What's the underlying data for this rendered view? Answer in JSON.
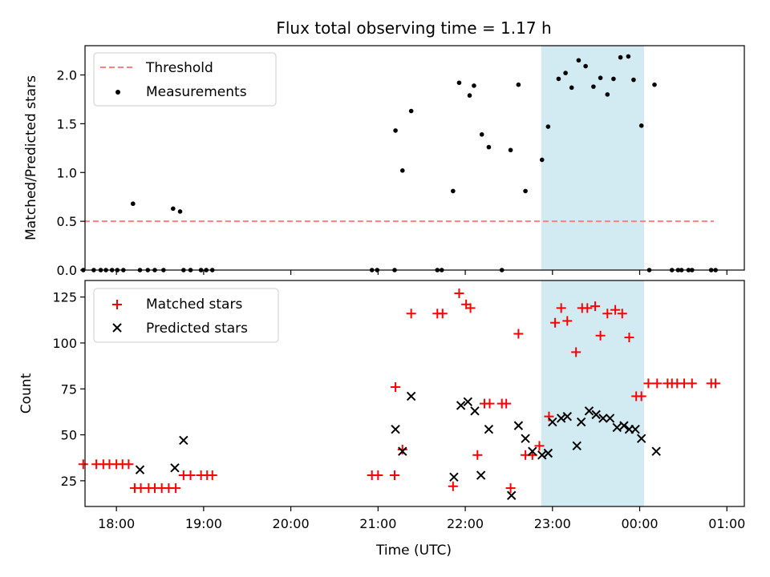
{
  "chart_data": [
    {
      "type": "scatter",
      "title": "Flux total observing time = 1.17 h",
      "ylabel": "Matched/Predicted stars",
      "xlabel": "",
      "xlim": [
        -0.36,
        7.2
      ],
      "ylim": [
        0,
        2.3
      ],
      "yticks": [
        0,
        0.5,
        1.0,
        1.5,
        2.0
      ],
      "ytick_labels": [
        "0.0",
        "0.5",
        "1.0",
        "1.5",
        "2.0"
      ],
      "shaded_region": {
        "x": [
          4.87,
          6.05
        ],
        "color": "#add8e6"
      },
      "legend_location": "upper-left",
      "threshold": {
        "name": "Threshold",
        "y": 0.5,
        "x": [
          -0.37,
          6.85
        ],
        "color": "#ff7f7f"
      },
      "series": [
        {
          "name": "Measurements",
          "color": "#000000",
          "x": [
            -0.38,
            -0.26,
            -0.18,
            -0.12,
            -0.05,
            0.01,
            0.08,
            0.19,
            0.27,
            0.36,
            0.44,
            0.54,
            0.65,
            0.73,
            0.77,
            0.85,
            0.97,
            1.03,
            1.1,
            2.93,
            2.99,
            3.19,
            3.2,
            3.28,
            3.38,
            3.68,
            3.73,
            3.86,
            3.93,
            4.05,
            4.1,
            4.19,
            4.27,
            4.42,
            4.52,
            4.61,
            4.69,
            4.88,
            4.95,
            5.07,
            5.15,
            5.22,
            5.3,
            5.38,
            5.47,
            5.55,
            5.63,
            5.7,
            5.78,
            5.87,
            5.93,
            6.02,
            6.11,
            6.17,
            6.37,
            6.44,
            6.48,
            6.56,
            6.6,
            6.82,
            6.87
          ],
          "y": [
            0,
            0,
            0,
            0,
            0,
            0,
            0,
            0.68,
            0,
            0,
            0,
            0,
            0.63,
            0.6,
            0,
            0,
            0,
            0,
            0,
            0,
            0,
            0,
            1.43,
            1.02,
            1.63,
            0,
            0,
            0.81,
            1.92,
            1.79,
            1.89,
            1.39,
            1.26,
            0,
            1.23,
            1.9,
            0.81,
            1.13,
            1.47,
            1.96,
            2.02,
            1.87,
            2.15,
            2.09,
            1.88,
            1.97,
            1.8,
            1.96,
            2.18,
            2.19,
            1.95,
            1.48,
            0,
            1.9,
            0,
            0,
            0,
            0,
            0,
            0,
            0
          ]
        }
      ]
    },
    {
      "type": "scatter",
      "xlabel": "Time (UTC)",
      "ylabel": "Count",
      "xlim": [
        -0.36,
        7.2
      ],
      "ylim": [
        11,
        134
      ],
      "xticks": [
        0,
        1,
        2,
        3,
        4,
        5,
        6,
        7
      ],
      "xtick_labels": [
        "18:00",
        "19:00",
        "20:00",
        "21:00",
        "22:00",
        "23:00",
        "00:00",
        "01:00"
      ],
      "yticks": [
        25,
        50,
        75,
        100,
        125
      ],
      "ytick_labels": [
        "25",
        "50",
        "75",
        "100",
        "125"
      ],
      "shaded_region": {
        "x": [
          4.87,
          6.05
        ],
        "color": "#add8e6"
      },
      "legend_location": "upper-left",
      "series": [
        {
          "name": "Matched stars",
          "marker": "+",
          "color": "#ff0000",
          "x": [
            -0.38,
            -0.23,
            -0.15,
            -0.08,
            0,
            0.07,
            0.14,
            0.21,
            0.28,
            0.37,
            0.44,
            0.52,
            0.6,
            0.68,
            0.77,
            0.85,
            0.97,
            1.04,
            1.1,
            2.93,
            3.0,
            3.19,
            3.2,
            3.28,
            3.38,
            3.68,
            3.74,
            3.86,
            3.93,
            4.01,
            4.06,
            4.14,
            4.22,
            4.28,
            4.42,
            4.47,
            4.52,
            4.61,
            4.69,
            4.77,
            4.85,
            4.96,
            5.03,
            5.1,
            5.17,
            5.27,
            5.34,
            5.4,
            5.49,
            5.55,
            5.63,
            5.72,
            5.8,
            5.88,
            5.96,
            6.02,
            6.1,
            6.2,
            6.32,
            6.37,
            6.43,
            6.51,
            6.6,
            6.82,
            6.87
          ],
          "y": [
            34,
            34,
            34,
            34,
            34,
            34,
            34,
            21,
            21,
            21,
            21,
            21,
            21,
            21,
            28,
            28,
            28,
            28,
            28,
            28,
            28,
            28,
            76,
            42,
            116,
            116,
            116,
            22,
            127,
            121,
            119,
            39,
            67,
            67,
            67,
            67,
            21,
            105,
            39,
            39,
            44,
            60,
            111,
            119,
            112,
            95,
            119,
            119,
            120,
            104,
            116,
            118,
            116,
            103,
            71,
            71,
            78,
            78,
            78,
            78,
            78,
            78,
            78,
            78,
            78
          ]
        },
        {
          "name": "Predicted stars",
          "marker": "x",
          "color": "#000000",
          "x": [
            0.27,
            0.67,
            0.77,
            3.2,
            3.28,
            3.38,
            3.87,
            3.95,
            4.03,
            4.11,
            4.18,
            4.27,
            4.53,
            4.61,
            4.69,
            4.77,
            4.88,
            4.95,
            5.0,
            5.1,
            5.17,
            5.28,
            5.33,
            5.42,
            5.5,
            5.58,
            5.66,
            5.74,
            5.82,
            5.88,
            5.95,
            6.02,
            6.19
          ],
          "y": [
            31,
            32,
            47,
            53,
            41,
            71,
            27,
            66,
            68,
            63,
            28,
            53,
            17,
            55,
            48,
            41,
            39,
            40,
            57,
            59,
            60,
            44,
            57,
            63,
            61,
            59,
            59,
            54,
            55,
            53,
            53,
            48,
            41
          ]
        }
      ]
    }
  ]
}
